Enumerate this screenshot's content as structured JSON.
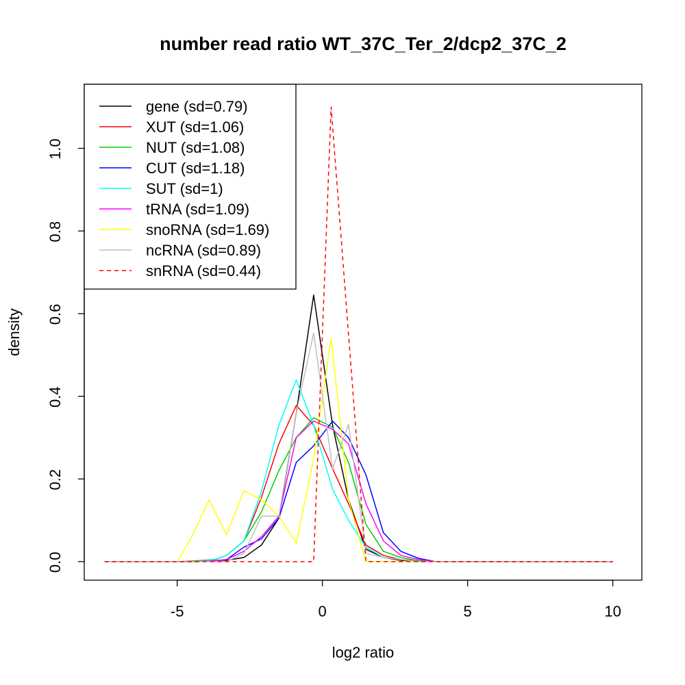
{
  "chart_data": {
    "type": "line",
    "title": "number read ratio WT_37C_Ter_2/dcp2_37C_2",
    "xlabel": "log2 ratio",
    "ylabel": "density",
    "xlim": [
      -8.2,
      11.0
    ],
    "ylim": [
      -0.045,
      1.155
    ],
    "x_ticks": [
      -5,
      0,
      5,
      10
    ],
    "x_tick_labels": [
      "-5",
      "0",
      "5",
      "10"
    ],
    "y_ticks": [
      0.0,
      0.2,
      0.4,
      0.6,
      0.8,
      1.0
    ],
    "y_tick_labels": [
      "0.0",
      "0.2",
      "0.4",
      "0.6",
      "0.8",
      "1.0"
    ],
    "grid": false,
    "legend_position": "top-left",
    "series": [
      {
        "name": "gene (sd=0.79)",
        "color": "#000000",
        "dash": false,
        "x": [
          -7.5,
          -4.3,
          -3.7,
          -3.3,
          -2.7,
          -2.1,
          -1.5,
          -0.9,
          -0.3,
          0.35,
          0.9,
          1.5,
          2.1,
          2.7,
          3.3,
          10.0
        ],
        "y": [
          0,
          0,
          0.003,
          0.003,
          0.01,
          0.04,
          0.105,
          0.36,
          0.645,
          0.33,
          0.15,
          0.03,
          0.01,
          0.003,
          0,
          0
        ]
      },
      {
        "name": "XUT (sd=1.06)",
        "color": "#ff0000",
        "dash": false,
        "x": [
          -7.5,
          -4.9,
          -4.3,
          -3.7,
          -3.3,
          -2.7,
          -2.1,
          -1.5,
          -0.9,
          -0.3,
          0.35,
          0.9,
          1.5,
          2.1,
          2.7,
          3.3,
          3.9,
          10.0
        ],
        "y": [
          0,
          0,
          0.002,
          0.005,
          0.015,
          0.05,
          0.155,
          0.285,
          0.378,
          0.33,
          0.225,
          0.14,
          0.04,
          0.015,
          0.005,
          0.002,
          0,
          0
        ]
      },
      {
        "name": "NUT (sd=1.08)",
        "color": "#00cd00",
        "dash": false,
        "x": [
          -7.5,
          -4.9,
          -4.3,
          -3.7,
          -3.3,
          -2.7,
          -2.1,
          -1.5,
          -0.9,
          -0.3,
          0.35,
          0.9,
          1.5,
          2.1,
          2.7,
          3.3,
          3.9,
          10.0
        ],
        "y": [
          0,
          0,
          0.002,
          0.005,
          0.015,
          0.05,
          0.12,
          0.22,
          0.3,
          0.348,
          0.325,
          0.24,
          0.09,
          0.025,
          0.01,
          0.002,
          0,
          0
        ]
      },
      {
        "name": "CUT (sd=1.18)",
        "color": "#0000ff",
        "dash": false,
        "x": [
          -7.5,
          -4.3,
          -3.7,
          -3.3,
          -2.7,
          -2.1,
          -1.5,
          -0.9,
          -0.3,
          0.35,
          0.9,
          1.5,
          2.1,
          2.7,
          3.3,
          3.9,
          10.0
        ],
        "y": [
          0,
          0,
          0.002,
          0.005,
          0.035,
          0.055,
          0.105,
          0.24,
          0.28,
          0.34,
          0.3,
          0.21,
          0.07,
          0.025,
          0.008,
          0,
          0
        ]
      },
      {
        "name": "SUT (sd=1)",
        "color": "#00ffff",
        "dash": false,
        "x": [
          -7.5,
          -4.3,
          -3.7,
          -3.3,
          -2.7,
          -2.1,
          -1.5,
          -0.9,
          -0.3,
          0.35,
          0.9,
          1.5,
          2.1,
          2.7,
          3.3,
          10.0
        ],
        "y": [
          0,
          0,
          0.005,
          0.015,
          0.05,
          0.17,
          0.33,
          0.44,
          0.33,
          0.175,
          0.1,
          0.035,
          0.01,
          0.005,
          0,
          0
        ]
      },
      {
        "name": "tRNA (sd=1.09)",
        "color": "#ff00ff",
        "dash": false,
        "x": [
          -7.5,
          -4.3,
          -3.7,
          -3.3,
          -2.7,
          -2.1,
          -1.5,
          -0.9,
          -0.3,
          0.35,
          0.9,
          1.5,
          2.1,
          2.7,
          3.3,
          3.9,
          10.0
        ],
        "y": [
          0,
          0,
          0.002,
          0.005,
          0.025,
          0.06,
          0.11,
          0.3,
          0.34,
          0.32,
          0.285,
          0.14,
          0.05,
          0.015,
          0.005,
          0,
          0
        ]
      },
      {
        "name": "snoRNA (sd=1.69)",
        "color": "#ffff00",
        "dash": false,
        "x": [
          -7.5,
          -5.0,
          -4.5,
          -3.9,
          -3.3,
          -2.7,
          -2.1,
          -1.5,
          -0.9,
          -0.3,
          0.3,
          0.9,
          1.5,
          10.0
        ],
        "y": [
          0,
          0,
          0.06,
          0.15,
          0.065,
          0.172,
          0.15,
          0.11,
          0.045,
          0.25,
          0.54,
          0.15,
          0,
          0
        ]
      },
      {
        "name": "ncRNA (sd=0.89)",
        "color": "#bebebe",
        "dash": false,
        "x": [
          -7.5,
          -3.3,
          -2.7,
          -2.1,
          -1.5,
          -0.9,
          -0.3,
          0.35,
          0.9,
          1.5,
          2.1,
          2.7,
          3.3,
          10.0
        ],
        "y": [
          0,
          0,
          0.02,
          0.11,
          0.11,
          0.36,
          0.553,
          0.225,
          0.332,
          0.02,
          0.01,
          0.005,
          0,
          0
        ]
      },
      {
        "name": "snRNA (sd=0.44)",
        "color": "#ff0000",
        "dash": true,
        "x": [
          -7.5,
          -0.3,
          0.3,
          0.9,
          1.5,
          10.0
        ],
        "y": [
          0,
          0,
          1.1,
          0.55,
          0,
          0
        ]
      }
    ]
  }
}
